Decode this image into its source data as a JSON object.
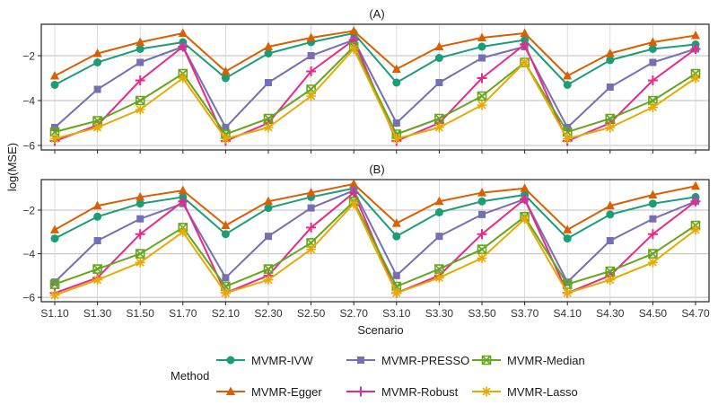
{
  "chart_data": {
    "type": "line",
    "ylabel": "log(MSE)",
    "xlabel": "Scenario",
    "categories": [
      "S1.10",
      "S1.30",
      "S1.50",
      "S1.70",
      "S2.10",
      "S2.30",
      "S2.50",
      "S2.70",
      "S3.10",
      "S3.30",
      "S3.50",
      "S3.70",
      "S4.10",
      "S4.30",
      "S4.50",
      "S4.70"
    ],
    "ylim": [
      -6.2,
      -0.6
    ],
    "yticks": [
      -2,
      -4,
      -6
    ],
    "legend_title": "Method",
    "legend_position": "bottom",
    "panels": [
      {
        "title": "(A)",
        "series": [
          {
            "name": "MVMR-IVW",
            "color": "#1b9e77",
            "marker": "circle",
            "values": [
              -3.3,
              -2.3,
              -1.7,
              -1.4,
              -3.0,
              -1.9,
              -1.4,
              -1.0,
              -3.2,
              -2.1,
              -1.6,
              -1.3,
              -3.3,
              -2.2,
              -1.7,
              -1.5
            ]
          },
          {
            "name": "MVMR-Egger",
            "color": "#d95f02",
            "marker": "triangle",
            "values": [
              -2.9,
              -1.9,
              -1.4,
              -1.0,
              -2.7,
              -1.6,
              -1.2,
              -0.9,
              -2.6,
              -1.6,
              -1.2,
              -1.0,
              -2.9,
              -1.9,
              -1.4,
              -1.1
            ]
          },
          {
            "name": "MVMR-PRESSO",
            "color": "#7570b3",
            "marker": "square",
            "values": [
              -5.2,
              -3.5,
              -2.3,
              -1.6,
              -5.2,
              -3.2,
              -2.0,
              -1.3,
              -5.0,
              -3.2,
              -2.1,
              -1.6,
              -5.2,
              -3.4,
              -2.3,
              -1.7
            ]
          },
          {
            "name": "MVMR-Robust",
            "color": "#e7298a",
            "marker": "plus",
            "values": [
              -5.8,
              -5.1,
              -3.1,
              -1.6,
              -5.8,
              -5.0,
              -2.7,
              -1.3,
              -5.8,
              -5.0,
              -3.0,
              -1.5,
              -5.8,
              -5.0,
              -3.1,
              -1.7
            ]
          },
          {
            "name": "MVMR-Median",
            "color": "#66a61e",
            "marker": "boxed-x",
            "values": [
              -5.4,
              -4.9,
              -4.0,
              -2.8,
              -5.5,
              -4.8,
              -3.5,
              -1.6,
              -5.5,
              -4.8,
              -3.8,
              -2.3,
              -5.4,
              -4.8,
              -4.0,
              -2.8
            ]
          },
          {
            "name": "MVMR-Lasso",
            "color": "#e6ab02",
            "marker": "asterisk",
            "values": [
              -5.7,
              -5.2,
              -4.4,
              -3.0,
              -5.7,
              -5.2,
              -3.8,
              -1.7,
              -5.7,
              -5.2,
              -4.2,
              -2.3,
              -5.7,
              -5.2,
              -4.3,
              -3.0
            ]
          }
        ]
      },
      {
        "title": "(B)",
        "series": [
          {
            "name": "MVMR-IVW",
            "color": "#1b9e77",
            "marker": "circle",
            "values": [
              -3.3,
              -2.3,
              -1.7,
              -1.4,
              -3.1,
              -1.9,
              -1.4,
              -1.0,
              -3.2,
              -2.1,
              -1.6,
              -1.3,
              -3.3,
              -2.2,
              -1.7,
              -1.4
            ]
          },
          {
            "name": "MVMR-Egger",
            "color": "#d95f02",
            "marker": "triangle",
            "values": [
              -2.9,
              -1.8,
              -1.4,
              -1.1,
              -2.7,
              -1.6,
              -1.2,
              -0.8,
              -2.6,
              -1.6,
              -1.2,
              -1.0,
              -2.9,
              -1.8,
              -1.3,
              -0.9
            ]
          },
          {
            "name": "MVMR-PRESSO",
            "color": "#7570b3",
            "marker": "square",
            "values": [
              -5.3,
              -3.4,
              -2.4,
              -1.7,
              -5.1,
              -3.2,
              -1.9,
              -1.1,
              -5.0,
              -3.2,
              -2.2,
              -1.5,
              -5.3,
              -3.4,
              -2.4,
              -1.6
            ]
          },
          {
            "name": "MVMR-Robust",
            "color": "#e7298a",
            "marker": "plus",
            "values": [
              -5.8,
              -5.1,
              -3.1,
              -1.6,
              -5.8,
              -5.0,
              -2.8,
              -1.2,
              -5.8,
              -5.0,
              -3.1,
              -1.5,
              -5.8,
              -5.0,
              -3.1,
              -1.6
            ]
          },
          {
            "name": "MVMR-Median",
            "color": "#66a61e",
            "marker": "boxed-x",
            "values": [
              -5.4,
              -4.7,
              -4.0,
              -2.8,
              -5.5,
              -4.7,
              -3.5,
              -1.6,
              -5.5,
              -4.7,
              -3.8,
              -2.3,
              -5.4,
              -4.8,
              -4.0,
              -2.7
            ]
          },
          {
            "name": "MVMR-Lasso",
            "color": "#e6ab02",
            "marker": "asterisk",
            "values": [
              -5.9,
              -5.2,
              -4.4,
              -3.0,
              -5.8,
              -5.2,
              -3.8,
              -1.7,
              -5.8,
              -5.1,
              -4.2,
              -2.4,
              -5.8,
              -5.2,
              -4.4,
              -2.9
            ]
          }
        ]
      }
    ]
  }
}
